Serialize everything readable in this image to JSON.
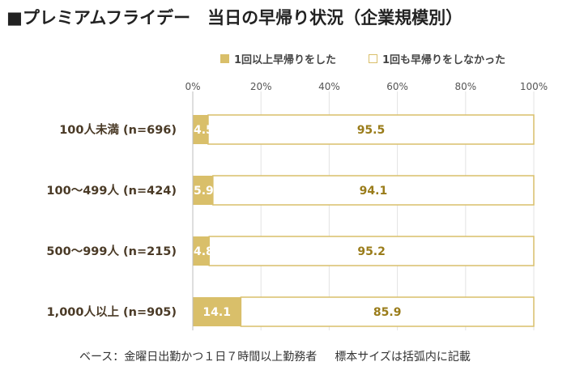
{
  "title": "■プレミアムフライデー　当日の早帰り状況（企業規模別）",
  "legend": [
    "1回以上早帰りをした",
    "1回も早帰りをしなかった"
  ],
  "colors": {
    "series1": "#d9bf6a",
    "series2_fill": "#ffffff",
    "series2_border": "#d9bf6a",
    "label_on_series1": "#ffffff",
    "label_on_series2": "#9a7c1a",
    "category_text": "#4a3a26",
    "axis_text": "#555555",
    "gridline": "#e3e3e3"
  },
  "chart_data": {
    "type": "bar",
    "orientation": "horizontal",
    "stacked": true,
    "categories": [
      "100人未満 (n=696)",
      "100～499人 (n=424)",
      "500～999人 (n=215)",
      "1,000人以上 (n=905)"
    ],
    "series": [
      {
        "name": "1回以上早帰りをした",
        "values": [
          4.5,
          5.9,
          4.8,
          14.1
        ]
      },
      {
        "name": "1回も早帰りをしなかった",
        "values": [
          95.5,
          94.1,
          95.2,
          85.9
        ]
      }
    ],
    "xlim": [
      0,
      100
    ],
    "xticks": [
      "0%",
      "20%",
      "40%",
      "60%",
      "80%",
      "100%"
    ],
    "xtick_values": [
      0,
      20,
      40,
      60,
      80,
      100
    ],
    "grid": true,
    "legend_position": "top"
  },
  "footnote": {
    "base": "ベース：金曜日出勤かつ１日７時間以上勤務者",
    "note": "標本サイズは括弧内に記載"
  }
}
